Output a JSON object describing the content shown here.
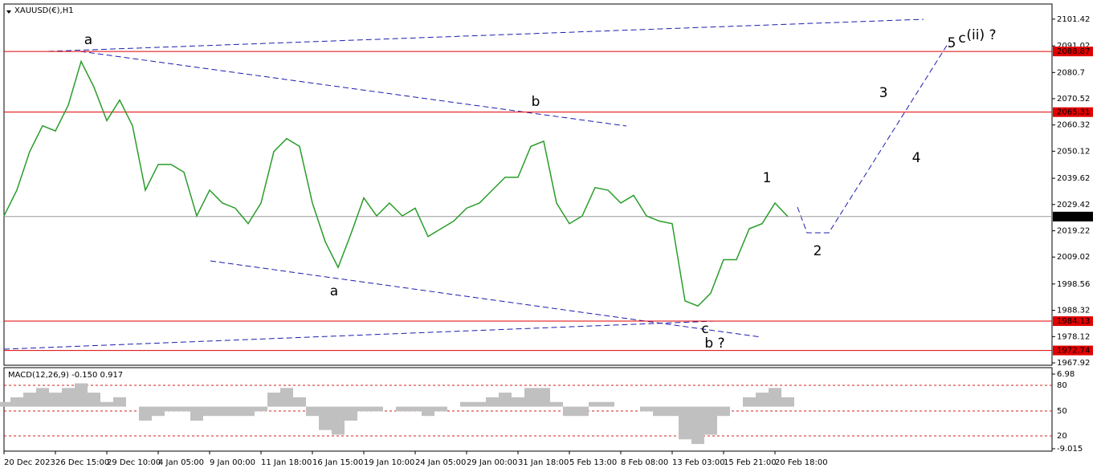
{
  "chart_data": [
    {
      "type": "line",
      "title": "XAUUSD(€),H1",
      "color": "#2a9d2a",
      "categories": [
        "20 Dec 2023",
        null,
        null,
        null,
        "26 Dec 15:00",
        null,
        null,
        null,
        "29 Dec 10:00",
        null,
        null,
        null,
        "4 Jan 05:00",
        null,
        null,
        null,
        "9 Jan 00:00",
        null,
        null,
        null,
        "11 Jan 18:00",
        null,
        null,
        null,
        "16 Jan 15:00",
        null,
        null,
        null,
        "19 Jan 10:00",
        null,
        null,
        null,
        "24 Jan 05:00",
        null,
        null,
        null,
        "29 Jan 00:00",
        null,
        null,
        null,
        "31 Jan 18:00",
        null,
        null,
        null,
        "5 Feb 13:00",
        null,
        null,
        null,
        "8 Feb 08:00",
        null,
        null,
        null,
        "13 Feb 03:00",
        null,
        null,
        null,
        "15 Feb 21:00",
        null,
        null,
        null,
        "20 Feb 18:00",
        null
      ],
      "values": [
        2025,
        2035,
        2050,
        2060,
        2058,
        2068,
        2085,
        2075,
        2062,
        2070,
        2060,
        2035,
        2045,
        2045,
        2042,
        2025,
        2035,
        2030,
        2028,
        2022,
        2030,
        2050,
        2055,
        2052,
        2030,
        2015,
        2005,
        2018,
        2032,
        2025,
        2030,
        2025,
        2028,
        2017,
        2020,
        2023,
        2028,
        2030,
        2035,
        2040,
        2040,
        2052,
        2054,
        2030,
        2022,
        2025,
        2036,
        2035,
        2030,
        2033,
        2025,
        2023,
        2022,
        1992,
        1990,
        1995,
        2008,
        2008,
        2020,
        2022,
        2030,
        2024.74
      ],
      "ylim": [
        1967,
        2107.3
      ],
      "yticks": [
        2101.42,
        2091.02,
        2080.7,
        2070.52,
        2060.32,
        2050.12,
        2039.62,
        2029.42,
        2019.22,
        2009.02,
        1998.56,
        1988.32,
        1978.12,
        1967.92
      ],
      "levels": [
        {
          "value": 2088.87,
          "color": "#e00000"
        },
        {
          "value": 2065.31,
          "color": "#e00000"
        },
        {
          "value": 2024.74,
          "color": "#9a9a9a"
        },
        {
          "value": 1984.13,
          "color": "#e00000"
        },
        {
          "value": 1972.74,
          "color": "#e00000"
        }
      ],
      "annotations": [
        {
          "text": "a",
          "color": "#e020e0"
        },
        {
          "text": "b",
          "color": "#000000"
        },
        {
          "text": "a",
          "color": "#000000"
        },
        {
          "text": "c",
          "color": "#000000"
        },
        {
          "text": "b ?",
          "color": "#e020e0"
        },
        {
          "text": "1",
          "color": "#000000"
        },
        {
          "text": "2",
          "color": "#000000"
        },
        {
          "text": "3",
          "color": "#000000"
        },
        {
          "text": "4",
          "color": "#000000"
        },
        {
          "text": "5",
          "color": "#000000"
        },
        {
          "text": "c",
          "color": "#e020e0"
        },
        {
          "text": "(ii) ?",
          "color": "#2020d0"
        }
      ]
    },
    {
      "type": "bar",
      "title": "MACD(12,26,9) -0.150 0.917",
      "color": "#c0c0c0",
      "values": [
        1,
        2,
        3,
        4,
        3,
        4,
        5,
        3,
        1,
        2,
        0,
        -3,
        -2,
        -1,
        -1,
        -3,
        -2,
        -2,
        -2,
        -2,
        -1,
        3,
        4,
        2,
        -2,
        -5,
        -6,
        -3,
        -1,
        -1,
        0,
        -1,
        -1,
        -2,
        -1,
        0,
        1,
        1,
        2,
        3,
        2,
        4,
        4,
        1,
        -2,
        -2,
        1,
        1,
        0,
        0,
        -1,
        -2,
        -2,
        -7,
        -8,
        -6,
        -2,
        0,
        2,
        3,
        4,
        2
      ],
      "ylim": [
        -9.015,
        6.98
      ],
      "yticks": [
        6.98,
        -9.015
      ],
      "level_labels": [
        "80",
        "50",
        "20"
      ]
    }
  ]
}
